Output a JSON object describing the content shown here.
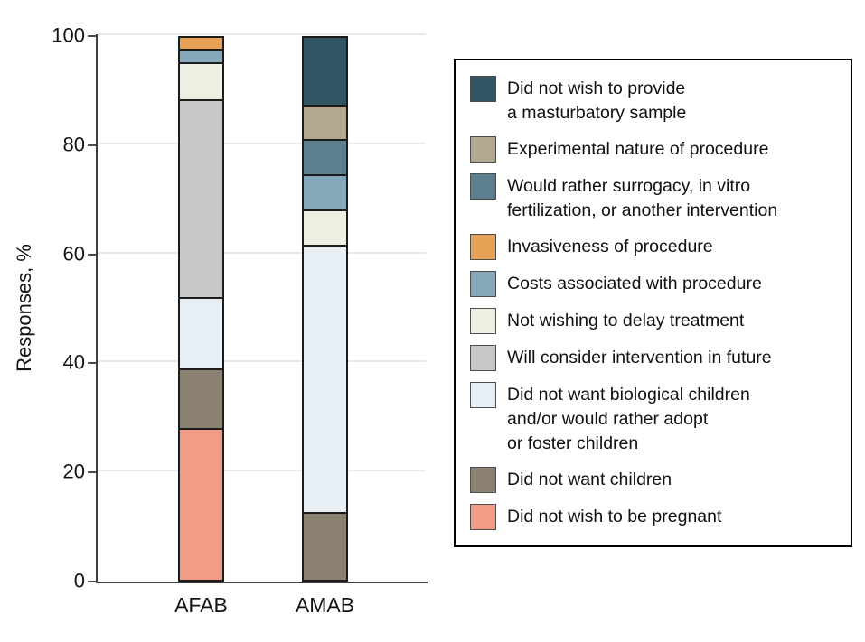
{
  "chart_data": {
    "type": "bar",
    "subtype": "stacked-percentage",
    "title": "",
    "xlabel": "",
    "ylabel": "Responses, %",
    "ylim": [
      0,
      100
    ],
    "yticks": [
      0,
      20,
      40,
      60,
      80,
      100
    ],
    "grid": "horizontal",
    "legend_position": "right",
    "categories": [
      "AFAB",
      "AMAB"
    ],
    "series": [
      {
        "name": "Did not wish to be pregnant",
        "color": "#f19c87",
        "values": [
          28.3,
          0
        ]
      },
      {
        "name": "Did not want children",
        "color": "#8a8170",
        "values": [
          10.9,
          12.5
        ]
      },
      {
        "name": "Did not want biological children and/or would rather adopt or foster children",
        "color": "#e7eff4",
        "values": [
          13.0,
          50.0
        ]
      },
      {
        "name": "Will consider intervention in future",
        "color": "#c7c8ca",
        "values": [
          37.0,
          0
        ]
      },
      {
        "name": "Not wishing to delay treatment",
        "color": "#efeee3",
        "values": [
          6.5,
          6.25
        ]
      },
      {
        "name": "Costs associated with procedure",
        "color": "#84a7b9",
        "values": [
          2.2,
          6.25
        ]
      },
      {
        "name": "Invasiveness of procedure",
        "color": "#e6a157",
        "values": [
          2.1,
          0
        ]
      },
      {
        "name": "Would rather surrogacy, in vitro fertilization, or another intervention",
        "color": "#5d8090",
        "values": [
          0,
          6.25
        ]
      },
      {
        "name": "Experimental nature of procedure",
        "color": "#b3a88f",
        "values": [
          0,
          6.25
        ]
      },
      {
        "name": "Did not wish to provide a masturbatory sample",
        "color": "#305565",
        "values": [
          0,
          12.5
        ]
      }
    ]
  },
  "legend": {
    "items": [
      {
        "label": "Did not wish to provide\na masturbatory sample",
        "color": "#305565"
      },
      {
        "label": "Experimental nature of procedure",
        "color": "#b3a88f"
      },
      {
        "label": "Would rather surrogacy, in vitro\nfertilization, or another intervention",
        "color": "#5d8090"
      },
      {
        "label": "Invasiveness of procedure",
        "color": "#e6a157"
      },
      {
        "label": "Costs associated with procedure",
        "color": "#84a7b9"
      },
      {
        "label": "Not wishing to delay treatment",
        "color": "#efeee3"
      },
      {
        "label": "Will consider intervention in future",
        "color": "#c7c8ca"
      },
      {
        "label": "Did not want biological children\nand/or would rather adopt\nor foster children",
        "color": "#e7eff4"
      },
      {
        "label": "Did not want children",
        "color": "#8a8170"
      },
      {
        "label": "Did not wish to be pregnant",
        "color": "#f19c87"
      }
    ]
  },
  "layout_colors": {
    "axis": "#3f3f3f",
    "gridline": "#e8e8e8",
    "bar_border": "#1c1c1c",
    "legend_border": "#000000",
    "text": "#141414"
  }
}
